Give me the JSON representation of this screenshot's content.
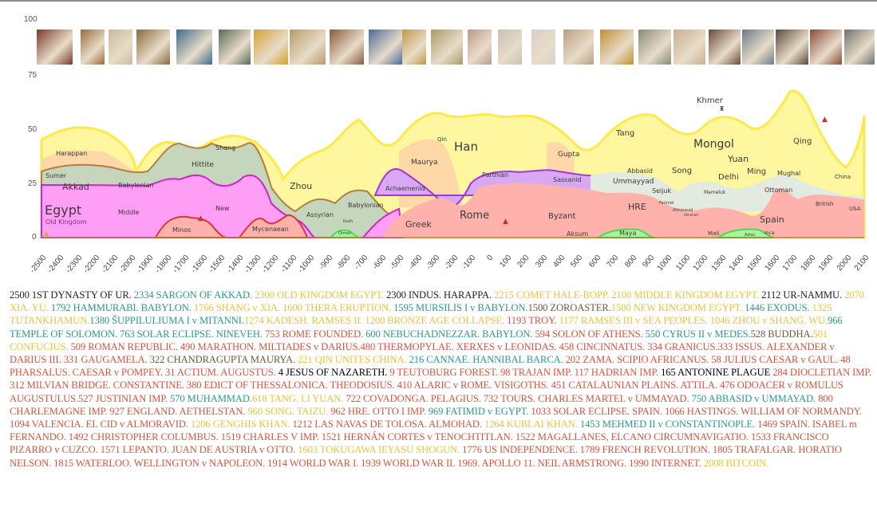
{
  "chart_data": {
    "type": "area",
    "title": "",
    "xlabel": "",
    "ylabel": "",
    "ylim": [
      0,
      100
    ],
    "xlim": [
      -2500,
      2100
    ],
    "grid": false,
    "y_ticks": [
      "100",
      "75",
      "50",
      "25",
      "0"
    ],
    "x_ticks": [
      "-2500",
      "-2400",
      "-2300",
      "-2200",
      "-2100",
      "-2000",
      "-1900",
      "-1800",
      "-1700",
      "-1600",
      "-1500",
      "-1400",
      "-1300",
      "-1200",
      "-1100",
      "-1000",
      "-900",
      "-800",
      "-700",
      "-600",
      "-500",
      "-400",
      "-300",
      "-200",
      "-100",
      "0",
      "100",
      "200",
      "300",
      "400",
      "500",
      "600",
      "700",
      "800",
      "900",
      "1000",
      "1100",
      "1200",
      "1300",
      "1400",
      "1500",
      "1600",
      "1700",
      "1800",
      "1900",
      "2000",
      "2100"
    ],
    "region_labels": [
      {
        "name": "Egypt",
        "x": -2450,
        "y": 15
      },
      {
        "name": "Old Kingdom",
        "x": -2450,
        "y": 8
      },
      {
        "name": "Middle",
        "x": -2100,
        "y": 12
      },
      {
        "name": "New",
        "x": -1550,
        "y": 15
      },
      {
        "name": "Harappan",
        "x": -2350,
        "y": 38
      },
      {
        "name": "Sumer",
        "x": -2450,
        "y": 27
      },
      {
        "name": "Akkad",
        "x": -2350,
        "y": 24
      },
      {
        "name": "Babylonian",
        "x": -2100,
        "y": 25
      },
      {
        "name": "Hittite",
        "x": -1700,
        "y": 35
      },
      {
        "name": "Shang",
        "x": -1500,
        "y": 42
      },
      {
        "name": "Minos",
        "x": -1700,
        "y": 5
      },
      {
        "name": "Mycenaean",
        "x": -1250,
        "y": 5
      },
      {
        "name": "Zhou",
        "x": -1100,
        "y": 24
      },
      {
        "name": "Assyrian",
        "x": -1000,
        "y": 12
      },
      {
        "name": "Babylonian",
        "x": -700,
        "y": 16
      },
      {
        "name": "Kush",
        "x": -800,
        "y": 9
      },
      {
        "name": "Olmec",
        "x": -800,
        "y": 3
      },
      {
        "name": "Achaemenid",
        "x": -500,
        "y": 24
      },
      {
        "name": "Greek",
        "x": -400,
        "y": 6
      },
      {
        "name": "Maurya",
        "x": -300,
        "y": 33
      },
      {
        "name": "Qin",
        "x": -200,
        "y": 44
      },
      {
        "name": "Han",
        "x": -100,
        "y": 40
      },
      {
        "name": "Rome",
        "x": 0,
        "y": 9
      },
      {
        "name": "Parthian",
        "x": 100,
        "y": 27
      },
      {
        "name": "Sassanid",
        "x": 400,
        "y": 25
      },
      {
        "name": "Gupta",
        "x": 450,
        "y": 35
      },
      {
        "name": "Byzant",
        "x": 400,
        "y": 9
      },
      {
        "name": "Aksum",
        "x": 500,
        "y": 1
      },
      {
        "name": "Tang",
        "x": 800,
        "y": 45
      },
      {
        "name": "Abbasid",
        "x": 800,
        "y": 30
      },
      {
        "name": "Ummayyad",
        "x": 800,
        "y": 24
      },
      {
        "name": "HRE",
        "x": 800,
        "y": 14
      },
      {
        "name": "Maya",
        "x": 800,
        "y": 2
      },
      {
        "name": "Seljuk",
        "x": 950,
        "y": 20
      },
      {
        "name": "Song",
        "x": 1050,
        "y": 29
      },
      {
        "name": "Fatimid",
        "x": 1000,
        "y": 15
      },
      {
        "name": "Almoravid",
        "x": 1100,
        "y": 11
      },
      {
        "name": "Almohad",
        "x": 1100,
        "y": 9
      },
      {
        "name": "Khmer",
        "x": 1250,
        "y": 62
      },
      {
        "name": "Mongol",
        "x": 1250,
        "y": 40
      },
      {
        "name": "Yuan",
        "x": 1300,
        "y": 33
      },
      {
        "name": "Delhi",
        "x": 1300,
        "y": 27
      },
      {
        "name": "Mameluk",
        "x": 1200,
        "y": 21
      },
      {
        "name": "Mali",
        "x": 1200,
        "y": 2
      },
      {
        "name": "Ming",
        "x": 1450,
        "y": 29
      },
      {
        "name": "Aztec",
        "x": 1420,
        "y": 1
      },
      {
        "name": "Inca",
        "x": 1550,
        "y": 2
      },
      {
        "name": "Spain",
        "x": 1550,
        "y": 8
      },
      {
        "name": "Ottoman",
        "x": 1600,
        "y": 22
      },
      {
        "name": "Mughal",
        "x": 1650,
        "y": 28
      },
      {
        "name": "Qing",
        "x": 1800,
        "y": 43
      },
      {
        "name": "British",
        "x": 1850,
        "y": 16
      },
      {
        "name": "China",
        "x": 2000,
        "y": 27
      },
      {
        "name": "USA",
        "x": 2030,
        "y": 14
      }
    ],
    "series": [
      {
        "name": "Egypt / Africa (magenta)",
        "color": "#ff9ef5",
        "line": "#c928c4"
      },
      {
        "name": "Mesopotamia / Middle East (sage)",
        "color": "#c6d6bd",
        "line": "#b77d3a"
      },
      {
        "name": "India (peach)",
        "color": "#ffd8a8",
        "line": "#d69a3e"
      },
      {
        "name": "China (yellow)",
        "color": "#fff6a0",
        "line": "#ffe94a"
      },
      {
        "name": "Persia (lavender)",
        "color": "#d9a8f5",
        "line": "#a338d8"
      },
      {
        "name": "Europe / Rome (salmon)",
        "color": "#ffb1ab",
        "line": "#d93838"
      },
      {
        "name": "Americas (green)",
        "color": "#a8f5a0",
        "line": "#4ed84a"
      },
      {
        "name": "Islamic / Ottoman (pale)",
        "color": "#e3eadf",
        "line": "#6b6b4a"
      }
    ]
  },
  "thumbnails": [
    {
      "name": "standard-of-ur",
      "x": 0,
      "w": 45,
      "color": "#7a3a2a"
    },
    {
      "name": "sargon-head",
      "x": 55,
      "w": 30,
      "color": "#9a6a3a"
    },
    {
      "name": "statue",
      "x": 90,
      "w": 30,
      "color": "#c9b8a0"
    },
    {
      "name": "relief",
      "x": 125,
      "w": 42,
      "color": "#8a6a3e"
    },
    {
      "name": "dolphin-fresco",
      "x": 175,
      "w": 45,
      "color": "#3e6a8a"
    },
    {
      "name": "bronze-disc",
      "x": 228,
      "w": 40,
      "color": "#5a6a5a"
    },
    {
      "name": "gold-mask",
      "x": 272,
      "w": 43,
      "color": "#d4a030"
    },
    {
      "name": "tablet-1",
      "x": 317,
      "w": 45,
      "color": "#b89a6a"
    },
    {
      "name": "tablet-2",
      "x": 367,
      "w": 43,
      "color": "#8a5a3a"
    },
    {
      "name": "ishtar-lion",
      "x": 416,
      "w": 42,
      "color": "#4a6a9a"
    },
    {
      "name": "hoplite",
      "x": 458,
      "w": 30,
      "color": "#c09a4a"
    },
    {
      "name": "battle-mosaic",
      "x": 494,
      "w": 40,
      "color": "#a89a6a"
    },
    {
      "name": "caesar-bust",
      "x": 540,
      "w": 30,
      "color": "#b89a8a"
    },
    {
      "name": "augustus-statue",
      "x": 578,
      "w": 30,
      "color": "#c8c0b0"
    },
    {
      "name": "constantine-head",
      "x": 620,
      "w": 30,
      "color": "#d8d0c8"
    },
    {
      "name": "relief-2",
      "x": 660,
      "w": 38,
      "color": "#b8a080"
    },
    {
      "name": "justinian-mosaic",
      "x": 706,
      "w": 42,
      "color": "#c09030"
    },
    {
      "name": "bayeux-tapestry",
      "x": 754,
      "w": 41,
      "color": "#8a8a7a"
    },
    {
      "name": "manuscript",
      "x": 798,
      "w": 40,
      "color": "#c8b090"
    },
    {
      "name": "primavera",
      "x": 842,
      "w": 40,
      "color": "#6a4a3a"
    },
    {
      "name": "conquest-painting",
      "x": 884,
      "w": 40,
      "color": "#6a7a8a"
    },
    {
      "name": "declaration",
      "x": 926,
      "w": 41,
      "color": "#5a4a3a"
    },
    {
      "name": "goya-battle",
      "x": 969,
      "w": 40,
      "color": "#8a4a3a"
    },
    {
      "name": "moon-landing",
      "x": 1012,
      "w": 38,
      "color": "#707070"
    }
  ],
  "events": [
    {
      "text": "2500 1ST DYNASTY OF UR. ",
      "c": "dark"
    },
    {
      "text": "2334 SARGON OF AKKAD. ",
      "c": "teal"
    },
    {
      "text": "2300 OLD KINGDOM EGYPT. ",
      "c": "yellow"
    },
    {
      "text": "2300 INDUS. HARAPPA. ",
      "c": "dark"
    },
    {
      "text": "2215 COMET HALE-BOPP. 2100 MIDDLE KINGDOM EGYPT. ",
      "c": "yellow"
    },
    {
      "text": "2112 UR-NAMMU. ",
      "c": "dark"
    },
    {
      "text": "2070 XIA. YU. ",
      "c": "yellow"
    },
    {
      "text": "1792 HAMMURABI. BABYLON. ",
      "c": "teal"
    },
    {
      "text": "1766 SHANG v XIA. 1600 THERA ERUPTION. ",
      "c": "yellow"
    },
    {
      "text": "1595 MURSILIS I v BABYLON.",
      "c": "teal"
    },
    {
      "text": "1500 ZOROASTER.",
      "c": "brown"
    },
    {
      "text": "1500 NEW KINGDOM EGYPT. ",
      "c": "yellow"
    },
    {
      "text": "1446 EXODUS. ",
      "c": "teal"
    },
    {
      "text": "1325 TUTANKHAMUN.",
      "c": "yellow"
    },
    {
      "text": "1380 ŠUPPILULIUMA I v MITANNI.",
      "c": "teal"
    },
    {
      "text": "1274 KADESH. RAMSES II. 1200 BRONZE AGE COLLAPSE. ",
      "c": "yellow"
    },
    {
      "text": "1193 TROY. ",
      "c": "red"
    },
    {
      "text": "1177 RAMSES III v SEA PEOPLES. 1046 ZHOU v SHANG. WU.",
      "c": "yellow"
    },
    {
      "text": "966 TEMPLE OF SOLOMON. 763 SOLAR ECLIPSE. NINEVEH. ",
      "c": "teal"
    },
    {
      "text": "753 ROME FOUNDED. ",
      "c": "red"
    },
    {
      "text": "600 NEBUCHADNEZZAR. BABYLON. ",
      "c": "teal"
    },
    {
      "text": "594 SOLON OF ATHENS. ",
      "c": "red"
    },
    {
      "text": "550 CYRUS II v MEDES.",
      "c": "teal"
    },
    {
      "text": "528 BUDDHA.",
      "c": "brown"
    },
    {
      "text": "501 CONFUCIUS. ",
      "c": "yellow"
    },
    {
      "text": "509 ROMAN REPUBLIC. 490 MARATHON. MILTIADES v DARIUS.480 THERMOPYLAE. XERXES v LEONIDAS. 458 CINCINNATUS. 334 GRANICUS.333 ISSUS. ALEXANDER v DARIUS III. 331 GAUGAMELA. ",
      "c": "red"
    },
    {
      "text": "322 CHANDRAGUPTA MAURYA. ",
      "c": "brown"
    },
    {
      "text": "221 QIN UNITES CHINA. ",
      "c": "yellow"
    },
    {
      "text": "216 CANNAE. HANNIBAL BARCA. ",
      "c": "teal"
    },
    {
      "text": "202 ZAMA. SCIPIO AFRICANUS. 58 JULIUS CAESAR v GAUL. 48 PHARSALUS. CAESAR v POMPEY. 31 ACTIUM. AUGUSTUS. ",
      "c": "red"
    },
    {
      "text": "4 JESUS OF NAZARETH. ",
      "c": "black"
    },
    {
      "text": "9 TEUTOBURG FOREST. 98 TRAJAN IMP. 117 HADRIAN IMP. ",
      "c": "red"
    },
    {
      "text": "165 ANTONINE PLAGUE ",
      "c": "black"
    },
    {
      "text": "284 DIOCLETIAN IMP. 312 MILVIAN BRIDGE. CONSTANTINE. 380 EDICT OF THESSALONICA. THEODOSIUS. 410 ALARIC v ROME. VISIGOTHS. 451 CATALAUNIAN PLAINS. ATTILA. 476 ODOACER v ROMULUS AUGUSTULUS.527 JUSTINIAN IMP. ",
      "c": "red"
    },
    {
      "text": "570 MUHAMMAD.",
      "c": "teal"
    },
    {
      "text": "618 TANG. LI YUAN. ",
      "c": "yellow"
    },
    {
      "text": "722 COVADONGA. PELAGIUS. 732 TOURS. CHARLES MARTEL v UMMAYAD. ",
      "c": "red"
    },
    {
      "text": "750 ABBASID v UMMAYAD. ",
      "c": "teal"
    },
    {
      "text": "800 CHARLEMAGNE IMP. 927 ENGLAND. AETHELSTAN. ",
      "c": "red"
    },
    {
      "text": "960 SONG. TAIZU. ",
      "c": "yellow"
    },
    {
      "text": "962 HRE. OTTO I IMP. ",
      "c": "red"
    },
    {
      "text": "969 FATIMID v EGYPT. ",
      "c": "teal"
    },
    {
      "text": "1033 SOLAR ECLIPSE. SPAIN. 1066 HASTINGS. WILLIAM OF NORMANDY. 1094 VALENCIA. EL CID v ALMORAVID. ",
      "c": "red"
    },
    {
      "text": "1206 GENGHIS KHAN. ",
      "c": "yellow"
    },
    {
      "text": "1212 LAS NAVAS DE TOLOSA. ALMOHAD. ",
      "c": "red"
    },
    {
      "text": "1264 KUBLAI KHAN. ",
      "c": "yellow"
    },
    {
      "text": "1453 MEHMED II v CONSTANTINOPLE. ",
      "c": "teal"
    },
    {
      "text": "1469 SPAIN. ISABEL m FERNANDO. 1492 CHRISTOPHER COLUMBUS. 1519 CHARLES V IMP. 1521 HERNÁN CORTES v TENOCHTITLAN. 1522 MAGALLANES, ELCANO CIRCUMNAVIGATIO. 1533 FRANCISCO PIZARRO v CUZCO. 1571 LEPANTO. JUAN DE AUSTRIA v OTTO. ",
      "c": "red"
    },
    {
      "text": "1603 TOKUGAWA IEYASU SHOGUN. ",
      "c": "yellow"
    },
    {
      "text": "1776 US INDEPENDENCE. 1789 FRENCH REVOLUTION. 1805 TRAFALGAR. HORATIO NELSON. 1815 WATERLOO. WELLINGTON v NAPOLEON. 1914 WORLD WAR I. 1939 WORLD WAR II. 1969. APOLLO 11. NEIL ARMSTRONG. 1990 INTERNET. ",
      "c": "red"
    },
    {
      "text": "2008 BITCOIN.",
      "c": "yellow"
    }
  ]
}
